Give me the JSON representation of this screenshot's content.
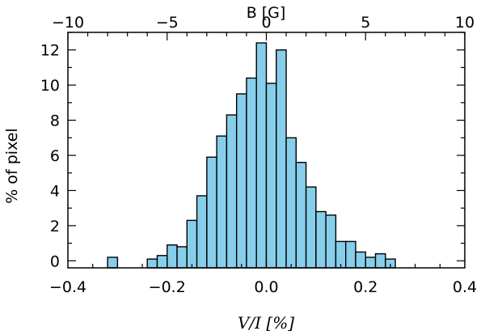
{
  "chart_data": {
    "type": "bar",
    "bin_edges": [
      -0.32,
      -0.3,
      -0.28,
      -0.26,
      -0.24,
      -0.22,
      -0.2,
      -0.18,
      -0.16,
      -0.14,
      -0.12,
      -0.1,
      -0.08,
      -0.06,
      -0.04,
      -0.02,
      0.0,
      0.02,
      0.04,
      0.06,
      0.08,
      0.1,
      0.12,
      0.14,
      0.16,
      0.18,
      0.2,
      0.22,
      0.24,
      0.26,
      0.28
    ],
    "values": [
      0.2,
      0,
      0,
      0,
      0.1,
      0.3,
      0.9,
      0.8,
      2.3,
      3.7,
      5.9,
      7.1,
      8.3,
      9.5,
      10.4,
      12.4,
      10.1,
      12.0,
      7.0,
      5.6,
      4.2,
      2.8,
      2.6,
      1.1,
      1.1,
      0.5,
      0.2,
      0.4,
      0.1,
      0
    ],
    "bar_color": "#87ceeb",
    "xlabel": "V/I [%]",
    "ylabel": "% of pixel",
    "top_xlabel": "B [G]",
    "xlim": [
      -0.4,
      0.4
    ],
    "ylim": [
      -0.4,
      13
    ],
    "top_xlim": [
      -10,
      10
    ],
    "x_ticks": [
      -0.4,
      -0.2,
      0.0,
      0.2,
      0.4
    ],
    "x_tick_labels": [
      "−0.4",
      "−0.2",
      "0.0",
      "0.2",
      "0.4"
    ],
    "top_ticks": [
      -10,
      -5,
      0,
      5,
      10
    ],
    "top_tick_labels": [
      "−10",
      "−5",
      "0",
      "5",
      "10"
    ],
    "y_ticks": [
      0,
      2,
      4,
      6,
      8,
      10,
      12
    ],
    "y_tick_labels": [
      "0",
      "2",
      "4",
      "6",
      "8",
      "10",
      "12"
    ],
    "grid": false,
    "legend": "none"
  }
}
